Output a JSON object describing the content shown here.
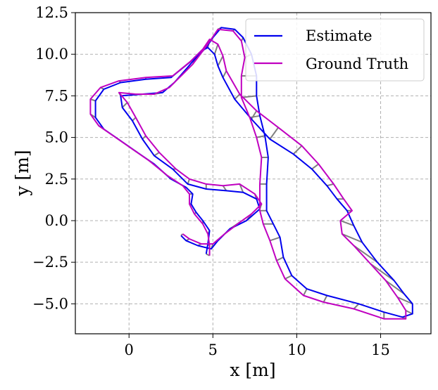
{
  "chart_data": {
    "type": "line",
    "title": "",
    "xlabel": "x [m]",
    "ylabel": "y [m]",
    "xlim": [
      -3.2,
      18.0
    ],
    "ylim": [
      -6.8,
      12.5
    ],
    "xticks": [
      0,
      5,
      10,
      15
    ],
    "xtick_labels": [
      "0",
      "5",
      "10",
      "15"
    ],
    "yticks": [
      -5.0,
      -2.5,
      0.0,
      2.5,
      5.0,
      7.5,
      10.0,
      12.5
    ],
    "ytick_labels": [
      "−5.0",
      "−2.5",
      "0.0",
      "2.5",
      "5.0",
      "7.5",
      "10.0",
      "12.5"
    ],
    "grid": true,
    "legend_position": "top-right",
    "series": [
      {
        "name": "Estimate",
        "color": "#0000ee",
        "points": [
          [
            4.6,
            -2.0
          ],
          [
            4.7,
            -1.4
          ],
          [
            4.8,
            -0.6
          ],
          [
            4.4,
            0.0
          ],
          [
            4.0,
            0.5
          ],
          [
            3.7,
            1.0
          ],
          [
            3.8,
            1.6
          ],
          [
            3.4,
            2.0
          ],
          [
            2.5,
            2.5
          ],
          [
            1.5,
            3.4
          ],
          [
            0.5,
            4.1
          ],
          [
            -0.5,
            4.8
          ],
          [
            -1.5,
            5.5
          ],
          [
            -2.0,
            6.2
          ],
          [
            -2.0,
            7.2
          ],
          [
            -1.5,
            7.9
          ],
          [
            -0.5,
            8.3
          ],
          [
            1.0,
            8.5
          ],
          [
            2.5,
            8.6
          ],
          [
            3.6,
            9.5
          ],
          [
            4.3,
            10.2
          ],
          [
            4.7,
            10.4
          ],
          [
            5.1,
            10.0
          ],
          [
            5.3,
            9.3
          ],
          [
            5.6,
            8.6
          ],
          [
            6.3,
            7.3
          ],
          [
            7.3,
            6.1
          ],
          [
            8.4,
            4.9
          ],
          [
            9.8,
            4.0
          ],
          [
            10.9,
            3.1
          ],
          [
            11.8,
            2.1
          ],
          [
            12.4,
            1.3
          ],
          [
            13.0,
            0.6
          ],
          [
            13.4,
            -0.3
          ],
          [
            13.9,
            -1.3
          ],
          [
            14.8,
            -2.5
          ],
          [
            15.8,
            -3.6
          ],
          [
            16.4,
            -4.4
          ],
          [
            16.9,
            -5.0
          ],
          [
            16.9,
            -5.6
          ],
          [
            16.3,
            -5.8
          ],
          [
            15.2,
            -5.5
          ],
          [
            13.7,
            -5.0
          ],
          [
            11.8,
            -4.5
          ],
          [
            10.6,
            -4.1
          ],
          [
            9.7,
            -3.3
          ],
          [
            9.2,
            -2.2
          ],
          [
            9.0,
            -1.0
          ],
          [
            8.6,
            -0.2
          ],
          [
            8.2,
            0.6
          ],
          [
            8.2,
            2.2
          ],
          [
            8.3,
            3.8
          ],
          [
            8.1,
            5.1
          ],
          [
            7.8,
            6.3
          ],
          [
            7.6,
            7.5
          ],
          [
            7.6,
            8.7
          ],
          [
            7.3,
            10.0
          ],
          [
            6.8,
            11.0
          ],
          [
            6.3,
            11.5
          ],
          [
            5.5,
            11.6
          ],
          [
            5.0,
            11.0
          ],
          [
            4.6,
            10.4
          ],
          [
            4.0,
            9.8
          ],
          [
            3.4,
            9.1
          ],
          [
            2.7,
            8.3
          ],
          [
            2.0,
            7.7
          ],
          [
            0.8,
            7.6
          ],
          [
            -0.5,
            7.5
          ],
          [
            -0.4,
            6.8
          ],
          [
            0.2,
            6.0
          ],
          [
            0.8,
            4.9
          ],
          [
            1.5,
            3.9
          ],
          [
            2.6,
            3.1
          ],
          [
            3.5,
            2.2
          ],
          [
            4.6,
            1.9
          ],
          [
            5.8,
            1.8
          ],
          [
            6.8,
            1.7
          ],
          [
            7.6,
            1.3
          ],
          [
            7.8,
            0.7
          ],
          [
            7.0,
            0.0
          ],
          [
            6.0,
            -0.5
          ],
          [
            5.3,
            -1.2
          ],
          [
            4.9,
            -1.7
          ],
          [
            4.1,
            -1.5
          ],
          [
            3.4,
            -1.2
          ],
          [
            3.1,
            -0.9
          ]
        ]
      },
      {
        "name": "Ground Truth",
        "color": "#c000c0",
        "points": [
          [
            4.8,
            -2.1
          ],
          [
            4.8,
            -1.5
          ],
          [
            4.7,
            -0.8
          ],
          [
            4.4,
            -0.2
          ],
          [
            3.9,
            0.4
          ],
          [
            3.6,
            1.0
          ],
          [
            3.6,
            1.6
          ],
          [
            3.2,
            2.1
          ],
          [
            2.3,
            2.7
          ],
          [
            1.2,
            3.6
          ],
          [
            0.2,
            4.3
          ],
          [
            -0.8,
            5.0
          ],
          [
            -1.8,
            5.7
          ],
          [
            -2.3,
            6.4
          ],
          [
            -2.3,
            7.3
          ],
          [
            -1.7,
            8.0
          ],
          [
            -0.6,
            8.4
          ],
          [
            1.0,
            8.6
          ],
          [
            2.6,
            8.7
          ],
          [
            3.7,
            9.6
          ],
          [
            4.4,
            10.3
          ],
          [
            4.8,
            10.9
          ],
          [
            5.3,
            10.6
          ],
          [
            5.6,
            9.9
          ],
          [
            5.8,
            9.0
          ],
          [
            6.6,
            7.6
          ],
          [
            7.6,
            6.6
          ],
          [
            8.9,
            5.6
          ],
          [
            10.3,
            4.5
          ],
          [
            11.3,
            3.4
          ],
          [
            12.2,
            2.2
          ],
          [
            12.8,
            1.3
          ],
          [
            13.3,
            0.6
          ],
          [
            12.6,
            0.0
          ],
          [
            12.7,
            -0.8
          ],
          [
            13.4,
            -1.5
          ],
          [
            14.4,
            -2.6
          ],
          [
            15.3,
            -3.6
          ],
          [
            16.0,
            -4.6
          ],
          [
            16.5,
            -5.4
          ],
          [
            16.5,
            -5.9
          ],
          [
            15.2,
            -5.9
          ],
          [
            13.4,
            -5.3
          ],
          [
            11.6,
            -4.9
          ],
          [
            10.4,
            -4.5
          ],
          [
            9.3,
            -3.5
          ],
          [
            8.8,
            -2.4
          ],
          [
            8.4,
            -1.2
          ],
          [
            8.0,
            -0.2
          ],
          [
            7.8,
            0.6
          ],
          [
            7.8,
            2.2
          ],
          [
            7.9,
            3.8
          ],
          [
            7.6,
            5.0
          ],
          [
            7.2,
            6.2
          ],
          [
            6.7,
            7.4
          ],
          [
            6.7,
            8.7
          ],
          [
            6.9,
            9.8
          ],
          [
            6.7,
            10.8
          ],
          [
            6.2,
            11.4
          ],
          [
            5.3,
            11.5
          ],
          [
            4.9,
            10.9
          ],
          [
            4.4,
            10.2
          ],
          [
            3.8,
            9.4
          ],
          [
            3.1,
            8.7
          ],
          [
            2.4,
            8.0
          ],
          [
            1.5,
            7.6
          ],
          [
            0.4,
            7.6
          ],
          [
            -0.6,
            7.7
          ],
          [
            -0.1,
            7.1
          ],
          [
            0.4,
            6.2
          ],
          [
            1.0,
            5.1
          ],
          [
            1.8,
            4.1
          ],
          [
            2.8,
            3.1
          ],
          [
            3.6,
            2.5
          ],
          [
            4.6,
            2.2
          ],
          [
            5.6,
            2.1
          ],
          [
            6.6,
            2.2
          ],
          [
            7.5,
            1.6
          ],
          [
            7.9,
            1.0
          ],
          [
            7.3,
            0.4
          ],
          [
            6.6,
            -0.1
          ],
          [
            5.7,
            -0.8
          ],
          [
            5.0,
            -1.4
          ],
          [
            4.3,
            -1.4
          ],
          [
            3.6,
            -1.1
          ],
          [
            3.2,
            -0.8
          ]
        ]
      }
    ]
  }
}
